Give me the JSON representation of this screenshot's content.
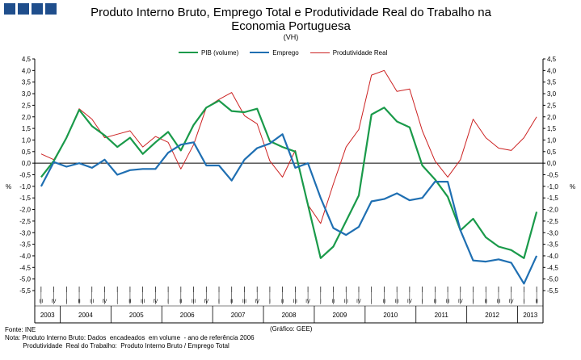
{
  "header": {
    "logo_blocks": 3,
    "logo_color": "#1f4e8c"
  },
  "chart_data": {
    "type": "line",
    "title_line1": "Produto Interno Bruto, Emprego Total e Produtividade Real do Trabalho na",
    "title_line2": "Economia Portuguesa",
    "subtitle": "(VH)",
    "ylabel_left": "%",
    "ylabel_right": "%",
    "ylim": [
      -5.5,
      4.5
    ],
    "yticks": [
      "4,5",
      "4,0",
      "3,5",
      "3,0",
      "2,5",
      "2,0",
      "1,5",
      "1,0",
      "0,5",
      "0,0",
      "-0,5",
      "-1,0",
      "-1,5",
      "-2,0",
      "-2,5",
      "-3,0",
      "-3,5",
      "-4,0",
      "-4,5",
      "-5,0",
      "-5,5"
    ],
    "quarters": [
      "III",
      "IV",
      "I",
      "II",
      "III",
      "IV",
      "I",
      "II",
      "III",
      "IV",
      "I",
      "II",
      "III",
      "IV",
      "I",
      "II",
      "III",
      "IV",
      "I",
      "II",
      "III",
      "IV",
      "I",
      "II",
      "III",
      "IV",
      "I",
      "II",
      "III",
      "IV",
      "I",
      "II",
      "III",
      "IV",
      "I",
      "II",
      "III",
      "IV",
      "I",
      "II"
    ],
    "years": [
      "2003",
      "2004",
      "2005",
      "2006",
      "2007",
      "2008",
      "2009",
      "2010",
      "2011",
      "2012",
      "2013"
    ],
    "series": [
      {
        "name": "PIB (volume)",
        "color": "#1a9a4a",
        "values": [
          -0.6,
          0.1,
          1.1,
          2.3,
          1.6,
          1.2,
          0.7,
          1.1,
          0.4,
          0.9,
          1.35,
          0.55,
          1.65,
          2.4,
          2.7,
          2.25,
          2.2,
          2.35,
          0.95,
          0.7,
          0.5,
          -1.8,
          -4.1,
          -3.6,
          -2.5,
          -1.4,
          2.1,
          2.4,
          1.8,
          1.55,
          -0.1,
          -0.7,
          -1.45,
          -2.9,
          -2.4,
          -3.2,
          -3.6,
          -3.75,
          -4.1,
          -2.1
        ]
      },
      {
        "name": "Emprego",
        "color": "#1f6fb2",
        "values": [
          -1.0,
          0.05,
          -0.15,
          0.0,
          -0.2,
          0.15,
          -0.5,
          -0.3,
          -0.25,
          -0.25,
          0.45,
          0.8,
          0.9,
          -0.1,
          -0.1,
          -0.75,
          0.15,
          0.65,
          0.85,
          1.25,
          -0.2,
          0.0,
          -1.5,
          -2.8,
          -3.1,
          -2.75,
          -1.65,
          -1.55,
          -1.3,
          -1.6,
          -1.5,
          -0.8,
          -0.8,
          -2.9,
          -4.2,
          -4.25,
          -4.15,
          -4.3,
          -5.2,
          -4.0
        ]
      },
      {
        "name": "Produtividade Real",
        "color": "#cc2222",
        "values": [
          0.4,
          0.15,
          1.1,
          2.35,
          1.9,
          1.1,
          1.25,
          1.4,
          0.7,
          1.15,
          0.9,
          -0.25,
          0.8,
          2.4,
          2.75,
          3.05,
          2.05,
          1.7,
          0.1,
          -0.6,
          0.55,
          -1.8,
          -2.6,
          -0.9,
          0.7,
          1.45,
          3.8,
          4.0,
          3.1,
          3.2,
          1.4,
          0.1,
          -0.6,
          0.15,
          1.9,
          1.1,
          0.65,
          0.55,
          1.1,
          2.0
        ]
      }
    ]
  },
  "footer": {
    "lines": [
      "Fonte: INE",
      "Nota: Produto Interno Bruto: Dados  encadeados  em volume  - ano de referência 2006",
      "          Produtividade  Real do Trabalho:  Produto Interno Bruto / Emprego Total"
    ],
    "credit": "(Gráfico:  GEE)"
  }
}
